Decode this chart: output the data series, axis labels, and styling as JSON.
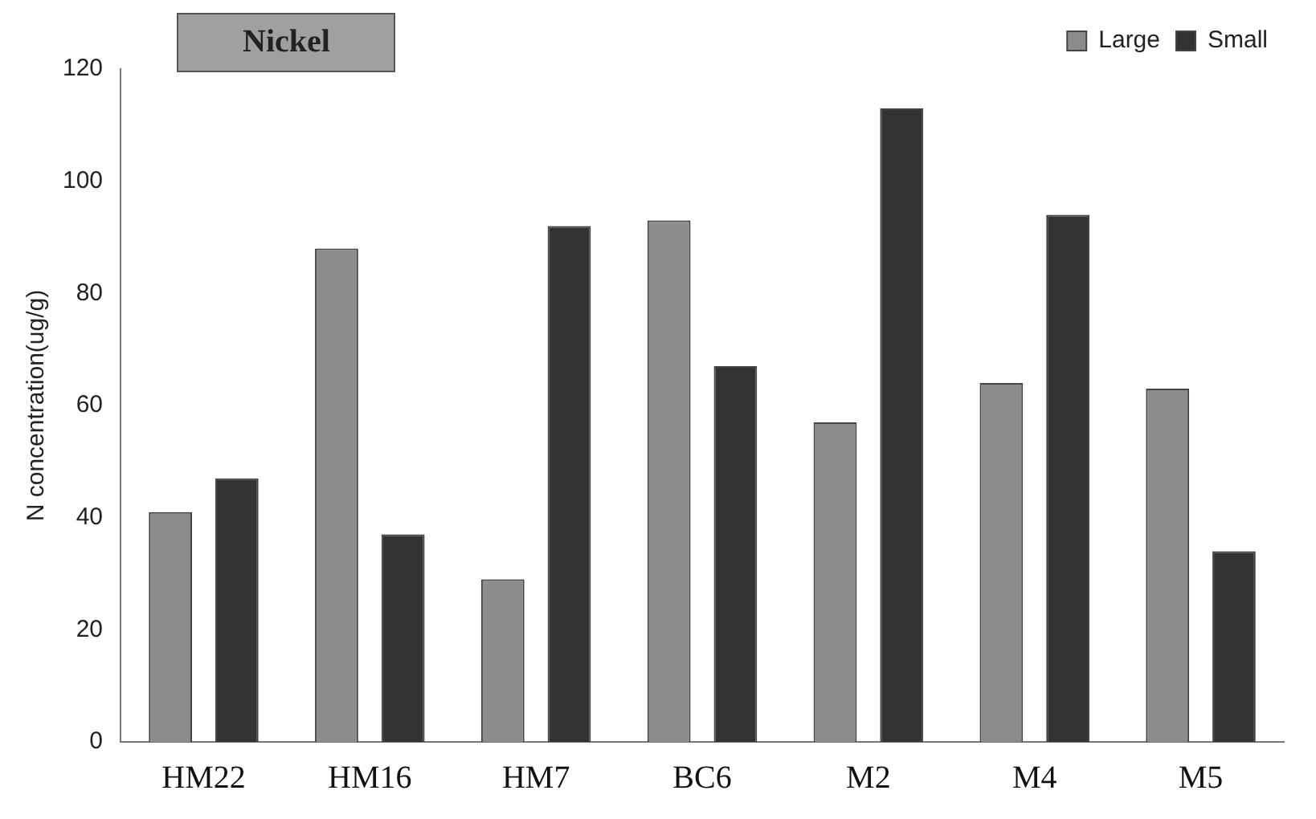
{
  "chart_data": {
    "type": "bar",
    "title": "Nickel",
    "ylabel": "N concentration(ug/g)",
    "categories": [
      "HM22",
      "HM16",
      "HM7",
      "BC6",
      "M2",
      "M4",
      "M5"
    ],
    "series": [
      {
        "name": "Large",
        "color": "#8c8c8c",
        "values": [
          41,
          88,
          29,
          93,
          57,
          64,
          63
        ]
      },
      {
        "name": "Small",
        "color": "#333333",
        "values": [
          47,
          37,
          92,
          67,
          113,
          94,
          34
        ]
      }
    ],
    "ylim": [
      0,
      120
    ],
    "yticks": [
      0,
      20,
      40,
      60,
      80,
      100,
      120
    ],
    "grid": false,
    "legend": "top right"
  }
}
